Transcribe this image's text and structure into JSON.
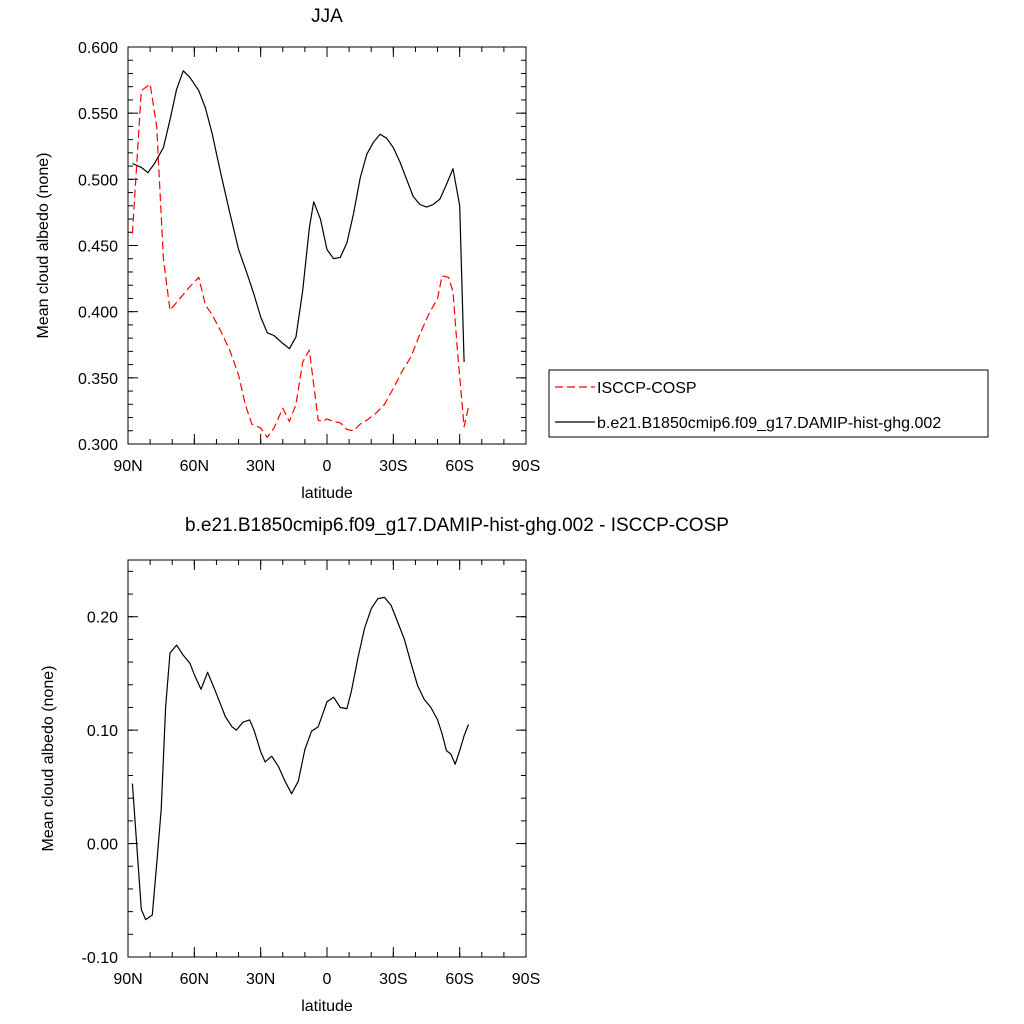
{
  "chart_data": [
    {
      "type": "line",
      "title": "JJA",
      "xlabel": "latitude",
      "ylabel": "Mean cloud albedo (none)",
      "xlim": [
        90,
        -90
      ],
      "ylim": [
        0.3,
        0.6
      ],
      "x_ticks": [
        90,
        60,
        30,
        0,
        -30,
        -60,
        -90
      ],
      "x_tick_labels": [
        "90N",
        "60N",
        "30N",
        "0",
        "30S",
        "60S",
        "90S"
      ],
      "y_ticks": [
        0.3,
        0.35,
        0.4,
        0.45,
        0.5,
        0.55,
        0.6
      ],
      "y_tick_labels": [
        "0.300",
        "0.350",
        "0.400",
        "0.450",
        "0.500",
        "0.550",
        "0.600"
      ],
      "legend_position": "right-outside",
      "series": [
        {
          "name": "ISCCP-COSP",
          "color": "#ff0000",
          "dash": "dashed",
          "x": [
            88,
            84,
            80,
            77,
            74,
            71,
            68,
            65,
            62,
            58,
            55,
            52,
            48,
            44,
            40,
            37,
            34,
            30,
            27,
            24,
            20,
            17,
            14,
            11,
            8,
            6,
            4,
            2,
            0,
            -3,
            -6,
            -9,
            -12,
            -15,
            -18,
            -22,
            -26,
            -30,
            -34,
            -38,
            -42,
            -46,
            -50,
            -52,
            -55,
            -57,
            -59,
            -62,
            -64
          ],
          "y": [
            0.459,
            0.567,
            0.572,
            0.54,
            0.44,
            0.401,
            0.407,
            0.413,
            0.419,
            0.426,
            0.405,
            0.398,
            0.385,
            0.371,
            0.352,
            0.33,
            0.315,
            0.312,
            0.305,
            0.312,
            0.327,
            0.317,
            0.33,
            0.362,
            0.371,
            0.345,
            0.318,
            0.317,
            0.319,
            0.317,
            0.316,
            0.311,
            0.31,
            0.315,
            0.318,
            0.323,
            0.33,
            0.342,
            0.355,
            0.366,
            0.383,
            0.398,
            0.41,
            0.427,
            0.426,
            0.415,
            0.37,
            0.313,
            0.328
          ]
        },
        {
          "name": "b.e21.B1850cmip6.f09_g17.DAMIP-hist-ghg.002",
          "color": "#000000",
          "dash": "solid",
          "x": [
            88,
            84,
            81,
            78,
            74,
            71,
            68,
            65,
            62,
            58,
            55,
            52,
            48,
            44,
            40,
            36,
            33,
            30,
            27,
            24,
            20,
            17,
            14,
            11,
            8,
            6,
            3,
            0,
            -3,
            -6,
            -9,
            -12,
            -15,
            -18,
            -21,
            -24,
            -27,
            -30,
            -33,
            -36,
            -39,
            -42,
            -45,
            -48,
            -51,
            -54,
            -57,
            -60,
            -62
          ],
          "y": [
            0.512,
            0.509,
            0.505,
            0.512,
            0.524,
            0.545,
            0.568,
            0.582,
            0.577,
            0.567,
            0.554,
            0.535,
            0.504,
            0.475,
            0.447,
            0.428,
            0.413,
            0.396,
            0.384,
            0.382,
            0.376,
            0.372,
            0.381,
            0.416,
            0.463,
            0.483,
            0.47,
            0.447,
            0.44,
            0.441,
            0.452,
            0.474,
            0.501,
            0.519,
            0.528,
            0.534,
            0.531,
            0.524,
            0.513,
            0.5,
            0.487,
            0.481,
            0.479,
            0.481,
            0.485,
            0.496,
            0.508,
            0.48,
            0.362
          ]
        }
      ]
    },
    {
      "type": "line",
      "title": "b.e21.B1850cmip6.f09_g17.DAMIP-hist-ghg.002 - ISCCP-COSP",
      "xlabel": "latitude",
      "ylabel": "Mean cloud albedo (none)",
      "xlim": [
        90,
        -90
      ],
      "ylim": [
        -0.1,
        0.25
      ],
      "x_ticks": [
        90,
        60,
        30,
        0,
        -30,
        -60,
        -90
      ],
      "x_tick_labels": [
        "90N",
        "60N",
        "30N",
        "0",
        "30S",
        "60S",
        "90S"
      ],
      "y_ticks": [
        -0.1,
        0.0,
        0.1,
        0.2
      ],
      "y_tick_labels": [
        "-0.10",
        "0.00",
        "0.10",
        "0.20"
      ],
      "series": [
        {
          "color": "#000000",
          "dash": "solid",
          "x": [
            88,
            86,
            84,
            82,
            79,
            77,
            75,
            73,
            71,
            68,
            65,
            62,
            60,
            57,
            54,
            51,
            48,
            46,
            43,
            41,
            38,
            35,
            33,
            30,
            28,
            25,
            22,
            19,
            16,
            13,
            10,
            7,
            4,
            2,
            0,
            -3,
            -6,
            -9,
            -11,
            -14,
            -17,
            -20,
            -23,
            -26,
            -29,
            -32,
            -35,
            -38,
            -41,
            -44,
            -47,
            -50,
            -52,
            -54,
            -56,
            -58,
            -60,
            -62,
            -64
          ],
          "y": [
            0.053,
            -0.002,
            -0.058,
            -0.067,
            -0.063,
            -0.018,
            0.03,
            0.12,
            0.168,
            0.175,
            0.166,
            0.159,
            0.149,
            0.136,
            0.151,
            0.137,
            0.122,
            0.112,
            0.103,
            0.1,
            0.107,
            0.109,
            0.1,
            0.081,
            0.072,
            0.077,
            0.068,
            0.055,
            0.044,
            0.055,
            0.083,
            0.099,
            0.103,
            0.114,
            0.125,
            0.129,
            0.12,
            0.119,
            0.134,
            0.164,
            0.19,
            0.207,
            0.216,
            0.217,
            0.21,
            0.195,
            0.18,
            0.159,
            0.139,
            0.127,
            0.12,
            0.109,
            0.097,
            0.082,
            0.079,
            0.07,
            0.082,
            0.095,
            0.105
          ]
        }
      ]
    }
  ]
}
